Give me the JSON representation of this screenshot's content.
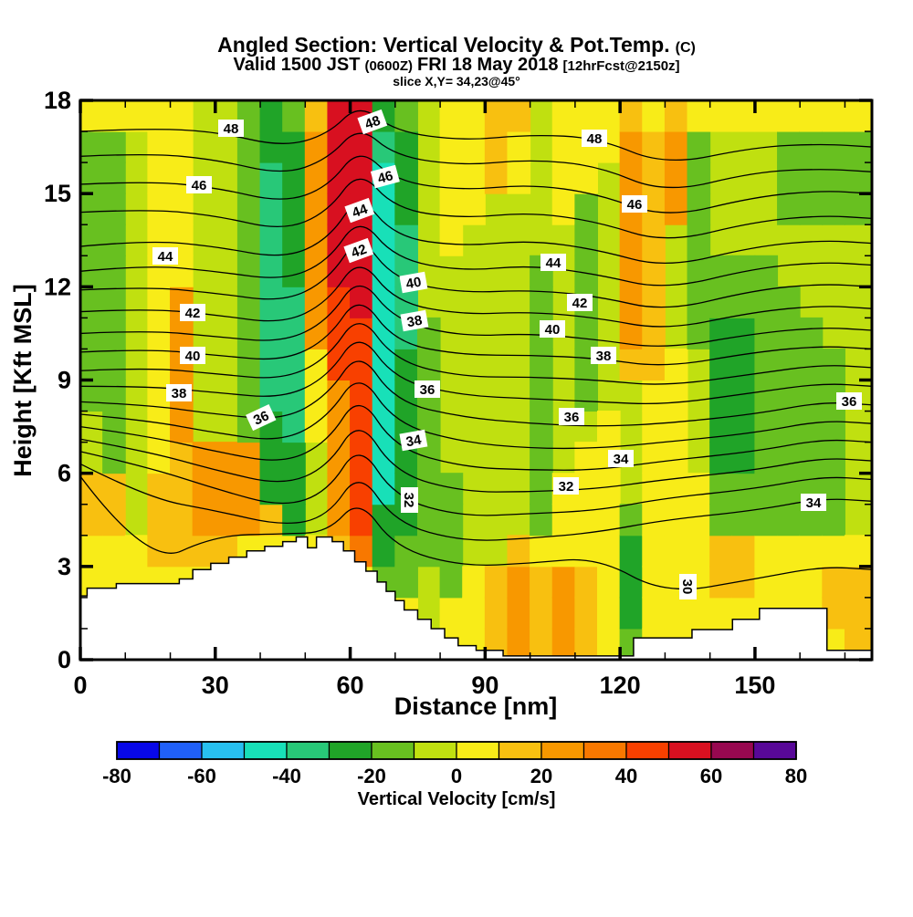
{
  "title": {
    "line1": "Angled Section: Vertical Velocity & Pot.Temp.",
    "line1_suffix": "(C)",
    "line2_a": "Valid 1500 JST",
    "line2_b": "(0600Z)",
    "line2_c": "FRI 18 May 2018",
    "line2_d": "[12hrFcst@2150z]",
    "line3": "slice X,Y= 34,23@45°"
  },
  "axes": {
    "x_label": "Distance [nm]",
    "y_label": "Height [Kft MSL]",
    "x_ticks": [
      0,
      30,
      60,
      90,
      120,
      150
    ],
    "x_minor_step": 10,
    "x_min": 0,
    "x_max": 176,
    "y_ticks": [
      0,
      3,
      6,
      9,
      12,
      15,
      18
    ],
    "y_minor_step": 1,
    "y_min": 0,
    "y_max": 18
  },
  "colorbar": {
    "title": "Vertical Velocity [cm/s]",
    "min": -80,
    "max": 80,
    "tick_labels": [
      "-80",
      "-60",
      "-40",
      "-20",
      "0",
      "20",
      "40",
      "60",
      "80"
    ],
    "palette": [
      "#0808e8",
      "#2060f8",
      "#28c0f0",
      "#18e0b8",
      "#28c878",
      "#20a428",
      "#68c020",
      "#c0e010",
      "#f8ec18",
      "#f8c010",
      "#f89800",
      "#f87800",
      "#f84000",
      "#d81020",
      "#980850",
      "#580898"
    ]
  },
  "chart_data": {
    "type": "heatmap+contour",
    "x_unit": "nm",
    "y_unit": "Kft",
    "fill_quantity": "vertical velocity (cm/s), 10 cm/s bins from -80 to 80",
    "contour_quantity": "potential temperature (C), interval 1, labeled every 2",
    "grid_col_width_nm": 5,
    "grid_rows": 18,
    "cells": [
      "888899776666666668",
      "888899666666666668",
      "888877777777777778",
      "888999888888888888",
      "8889999aaaaa888888",
      "8889aaa77777777777",
      "8889aaa77777777777",
      "8888aaa66666666666",
      "888895554444444455",
      "888855544444555556",
      "8888777888aaaaaaa9",
      "8889aaaaacccdddddd",
      "888bcccccccddddddd",
      "886553333333333345",
      "886655555544445556",
      "877666666667777777",
      "886666777777788888",
      "888777777777778888",
      "999777777777777999",
      "aaa977777777777889",
      "999866666666677777",
      "aaa888777777778888",
      "999888876666666888",
      "888888887777777788",
      "6555677779aaaaaaa9",
      "888888888999999998",
      "88888888887777aaa9",
      "888888777766666668",
      "889966555556677778",
      "889966555556677778",
      "888866666666677778",
      "888866666666776668",
      "888866666667776668",
      "899866666677776668",
      "999877777777776668",
      "999877777777776668"
    ],
    "terrain_profile": [
      [
        0,
        2.05
      ],
      [
        1.5,
        2.3
      ],
      [
        8,
        2.45
      ],
      [
        22,
        2.6
      ],
      [
        25,
        2.9
      ],
      [
        29,
        3.1
      ],
      [
        33,
        3.3
      ],
      [
        37,
        3.5
      ],
      [
        41,
        3.65
      ],
      [
        45,
        3.8
      ],
      [
        48,
        3.95
      ],
      [
        50.5,
        3.6
      ],
      [
        52.5,
        3.95
      ],
      [
        56,
        3.8
      ],
      [
        58.5,
        3.5
      ],
      [
        61,
        3.15
      ],
      [
        63.5,
        2.85
      ],
      [
        66,
        2.5
      ],
      [
        68,
        2.2
      ],
      [
        70,
        1.9
      ],
      [
        72,
        1.6
      ],
      [
        75,
        1.3
      ],
      [
        78,
        1.0
      ],
      [
        81,
        0.7
      ],
      [
        84,
        0.45
      ],
      [
        88,
        0.3
      ],
      [
        94,
        0.12
      ],
      [
        123,
        0.7
      ],
      [
        136,
        0.97
      ],
      [
        145,
        1.3
      ],
      [
        151,
        1.65
      ],
      [
        166,
        0.3
      ],
      [
        176,
        0.3
      ]
    ],
    "isotherm_x": [
      0,
      15,
      30,
      45,
      55,
      62,
      70,
      85,
      100,
      115,
      130,
      150,
      165,
      176
    ],
    "isotherms": [
      {
        "level": 48,
        "h": [
          17.0,
          17.1,
          17.0,
          16.5,
          16.9,
          17.9,
          17.0,
          16.7,
          16.9,
          16.8,
          15.9,
          16.5,
          16.6,
          16.5
        ]
      },
      {
        "level": 47,
        "h": [
          16.2,
          16.3,
          16.1,
          15.6,
          16.1,
          17.2,
          16.2,
          15.9,
          16.1,
          15.9,
          15.0,
          15.7,
          15.8,
          15.7
        ]
      },
      {
        "level": 46,
        "h": [
          15.3,
          15.4,
          15.2,
          14.7,
          15.2,
          16.5,
          15.4,
          15.1,
          15.3,
          15.0,
          14.2,
          14.9,
          15.1,
          15.0
        ]
      },
      {
        "level": 45,
        "h": [
          14.4,
          14.5,
          14.3,
          13.8,
          14.4,
          15.8,
          14.5,
          14.2,
          14.4,
          14.1,
          13.4,
          14.1,
          14.3,
          14.2
        ]
      },
      {
        "level": 44,
        "h": [
          13.3,
          13.5,
          13.3,
          12.9,
          13.5,
          15.0,
          13.6,
          13.3,
          13.5,
          13.2,
          12.6,
          13.3,
          13.5,
          13.4
        ]
      },
      {
        "level": 43,
        "h": [
          12.5,
          12.7,
          12.5,
          12.2,
          12.8,
          14.3,
          12.9,
          12.5,
          12.7,
          12.4,
          11.9,
          12.6,
          12.8,
          12.7
        ]
      },
      {
        "level": 42,
        "h": [
          11.9,
          12.0,
          11.8,
          11.5,
          12.2,
          13.7,
          12.2,
          11.8,
          11.9,
          11.7,
          11.2,
          11.9,
          12.1,
          12.0
        ]
      },
      {
        "level": 41,
        "h": [
          11.2,
          11.3,
          11.1,
          10.8,
          11.5,
          13.0,
          11.5,
          11.1,
          11.2,
          11.0,
          10.6,
          11.2,
          11.4,
          11.3
        ]
      },
      {
        "level": 40,
        "h": [
          10.5,
          10.6,
          10.4,
          10.2,
          10.9,
          12.4,
          10.9,
          10.4,
          10.5,
          10.3,
          10.0,
          10.5,
          10.7,
          10.6
        ]
      },
      {
        "level": 39,
        "h": [
          9.9,
          10.0,
          9.8,
          9.6,
          10.3,
          11.8,
          10.2,
          9.8,
          9.8,
          9.7,
          9.4,
          9.9,
          10.1,
          10.0
        ]
      },
      {
        "level": 38,
        "h": [
          9.3,
          9.4,
          9.2,
          9.0,
          9.7,
          11.2,
          9.6,
          9.1,
          9.1,
          9.0,
          8.8,
          9.2,
          9.5,
          9.4
        ]
      },
      {
        "level": 37,
        "h": [
          8.8,
          8.8,
          8.6,
          8.4,
          9.1,
          10.6,
          9.0,
          8.5,
          8.4,
          8.3,
          8.2,
          8.6,
          8.9,
          8.8
        ]
      },
      {
        "level": 36,
        "h": [
          8.3,
          8.2,
          7.9,
          7.7,
          8.5,
          10.0,
          8.3,
          7.8,
          7.6,
          7.5,
          7.6,
          7.9,
          8.3,
          8.2
        ]
      },
      {
        "level": 35,
        "h": [
          7.9,
          7.7,
          7.3,
          7.0,
          7.8,
          9.3,
          7.6,
          7.0,
          6.8,
          6.8,
          7.0,
          7.3,
          7.7,
          7.6
        ]
      },
      {
        "level": 34,
        "h": [
          7.5,
          7.2,
          6.7,
          6.3,
          7.0,
          8.6,
          6.8,
          6.2,
          6.1,
          6.1,
          6.4,
          6.7,
          7.1,
          7.0
        ]
      },
      {
        "level": 33,
        "h": [
          7.1,
          6.7,
          6.1,
          5.6,
          6.2,
          7.8,
          6.0,
          5.4,
          5.4,
          5.5,
          5.8,
          6.1,
          6.5,
          6.4
        ]
      },
      {
        "level": 32,
        "h": [
          6.7,
          6.2,
          5.5,
          4.9,
          5.4,
          7.0,
          5.2,
          4.6,
          4.7,
          4.8,
          5.2,
          5.5,
          5.9,
          5.8
        ]
      },
      {
        "level": 31,
        "h": [
          6.3,
          5.2,
          4.8,
          4.3,
          4.6,
          6.1,
          4.4,
          3.8,
          3.9,
          4.1,
          4.5,
          4.8,
          5.2,
          5.1
        ]
      },
      {
        "level": 30,
        "h": [
          5.9,
          3.0,
          4.0,
          4.05,
          4.1,
          5.2,
          3.6,
          3.0,
          3.1,
          3.3,
          2.1,
          2.6,
          3.0,
          2.9
        ]
      }
    ],
    "isotherm_labels": [
      {
        "t": "48",
        "x": 253,
        "y": 141,
        "rot": 0
      },
      {
        "t": "48",
        "x": 408,
        "y": 134,
        "rot": -20
      },
      {
        "t": "48",
        "x": 651,
        "y": 152,
        "rot": 0
      },
      {
        "t": "46",
        "x": 218,
        "y": 203,
        "rot": 0
      },
      {
        "t": "46",
        "x": 422,
        "y": 194,
        "rot": -15
      },
      {
        "t": "46",
        "x": 695,
        "y": 224,
        "rot": 0
      },
      {
        "t": "44",
        "x": 181,
        "y": 281,
        "rot": 0
      },
      {
        "t": "44",
        "x": 394,
        "y": 231,
        "rot": -20
      },
      {
        "t": "44",
        "x": 606,
        "y": 288,
        "rot": 0
      },
      {
        "t": "42",
        "x": 211,
        "y": 343,
        "rot": 0
      },
      {
        "t": "42",
        "x": 393,
        "y": 275,
        "rot": -20
      },
      {
        "t": "42",
        "x": 635,
        "y": 332,
        "rot": 0
      },
      {
        "t": "40",
        "x": 211,
        "y": 390,
        "rot": 0
      },
      {
        "t": "40",
        "x": 453,
        "y": 310,
        "rot": -10
      },
      {
        "t": "40",
        "x": 605,
        "y": 361,
        "rot": 0
      },
      {
        "t": "38",
        "x": 196,
        "y": 431,
        "rot": 0
      },
      {
        "t": "38",
        "x": 454,
        "y": 352,
        "rot": -10
      },
      {
        "t": "38",
        "x": 661,
        "y": 390,
        "rot": 0
      },
      {
        "t": "36",
        "x": 286,
        "y": 458,
        "rot": -25
      },
      {
        "t": "36",
        "x": 468,
        "y": 427,
        "rot": 0
      },
      {
        "t": "36",
        "x": 626,
        "y": 457,
        "rot": 0
      },
      {
        "t": "36",
        "x": 930,
        "y": 440,
        "rot": 0
      },
      {
        "t": "34",
        "x": 453,
        "y": 483,
        "rot": -10
      },
      {
        "t": "34",
        "x": 680,
        "y": 503,
        "rot": 0
      },
      {
        "t": "34",
        "x": 891,
        "y": 551,
        "rot": 0
      },
      {
        "t": "32",
        "x": 448,
        "y": 548,
        "rot": 90
      },
      {
        "t": "32",
        "x": 620,
        "y": 533,
        "rot": 0
      },
      {
        "t": "30",
        "x": 753,
        "y": 643,
        "rot": 90
      }
    ],
    "geometry": {
      "plot_left": 88,
      "plot_top": 110,
      "plot_right": 955,
      "plot_bottom": 723,
      "cbar_left": 128,
      "cbar_top": 813,
      "cbar_width": 744,
      "cbar_height": 19
    }
  }
}
